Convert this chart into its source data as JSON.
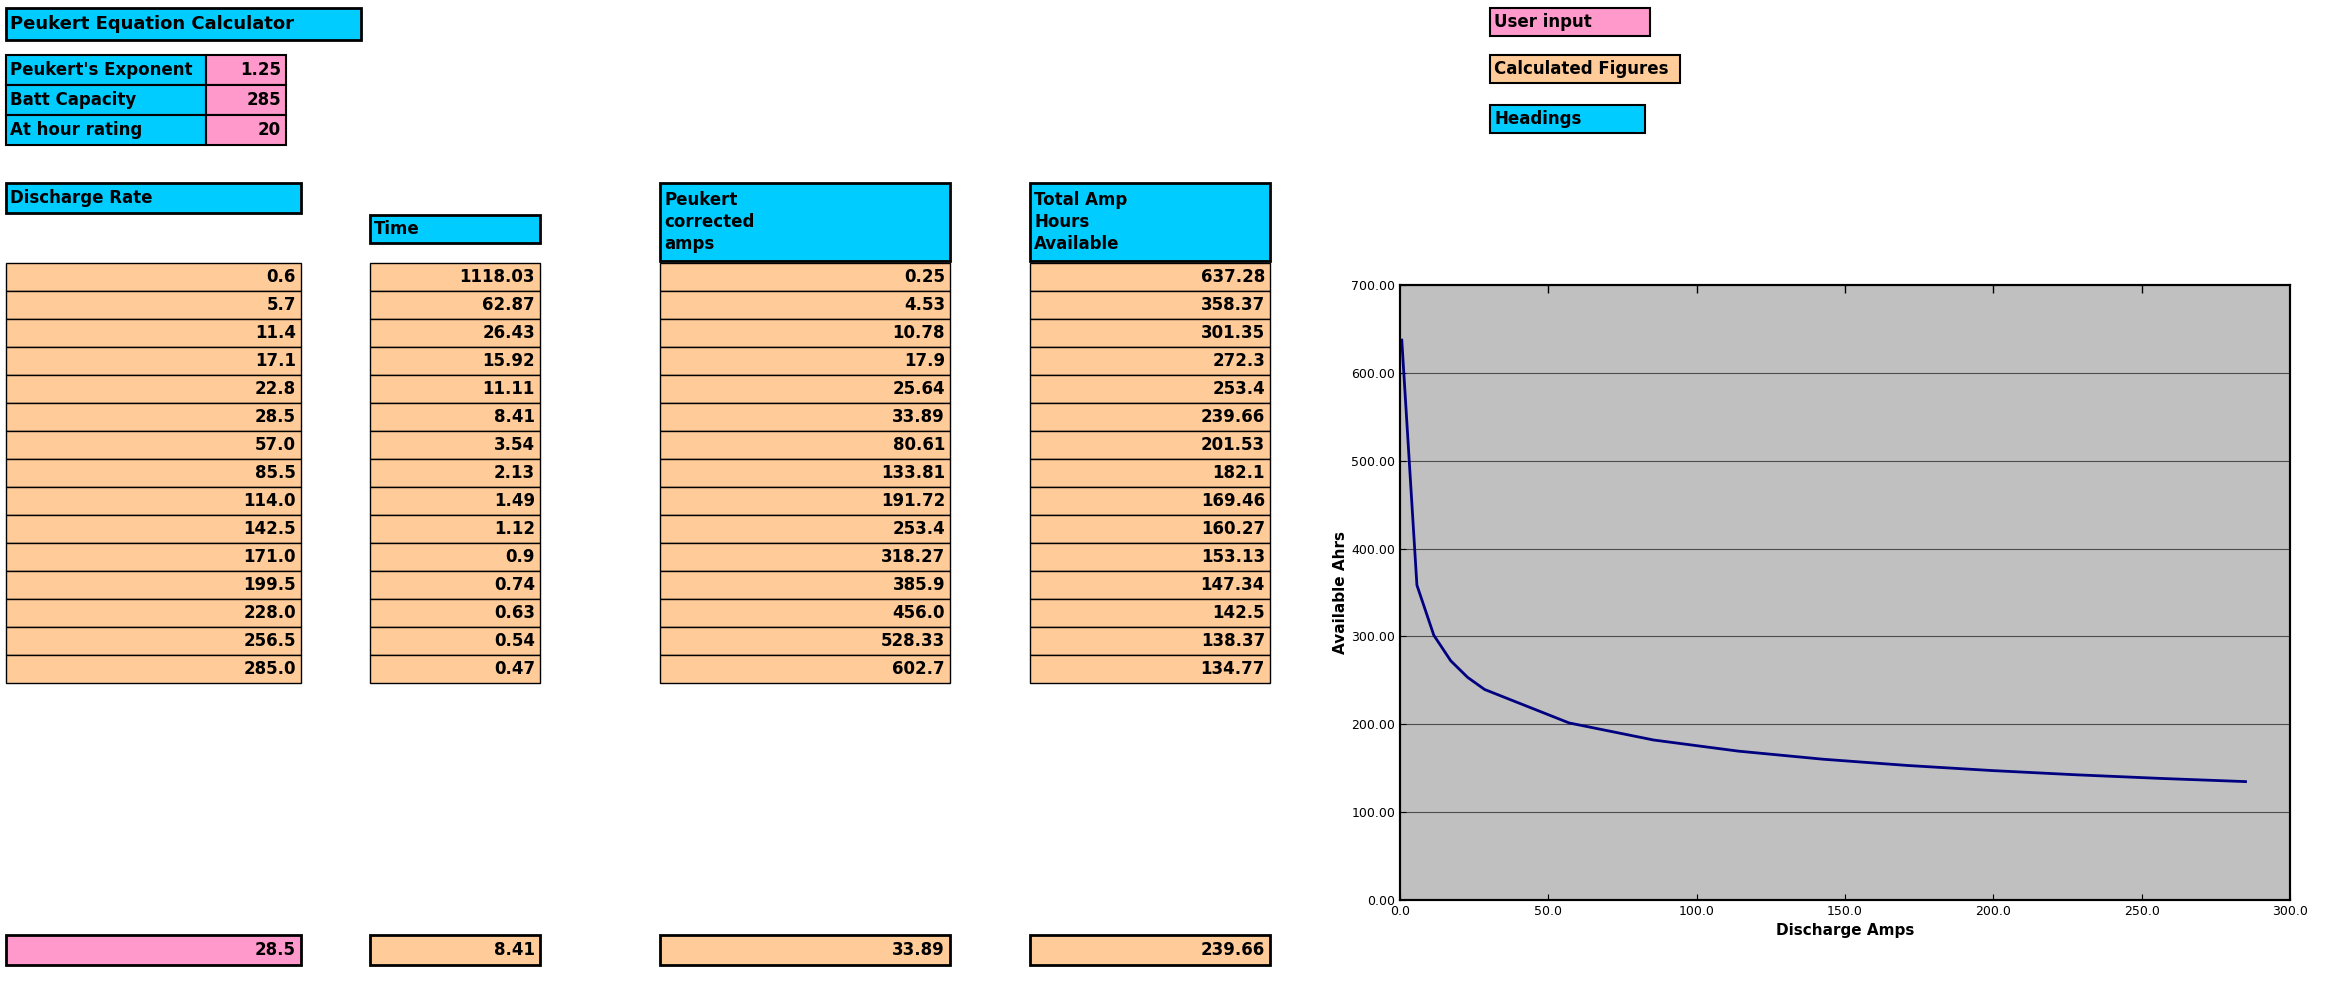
{
  "title": "Peukert Equation Calculator",
  "input_labels": [
    "Peukert's Exponent",
    "Batt Capacity",
    "At hour rating"
  ],
  "input_values": [
    "1.25",
    "285",
    "20"
  ],
  "col_headers": [
    "Discharge Rate",
    "Time",
    "Peukert\ncorrected\namps",
    "Total Amp\nHours\nAvailable"
  ],
  "discharge_rate": [
    0.6,
    5.7,
    11.4,
    17.1,
    22.8,
    28.5,
    57.0,
    85.5,
    114.0,
    142.5,
    171.0,
    199.5,
    228.0,
    256.5,
    285.0
  ],
  "time": [
    1118.03,
    62.87,
    26.43,
    15.92,
    11.11,
    8.41,
    3.54,
    2.13,
    1.49,
    1.12,
    0.9,
    0.74,
    0.63,
    0.54,
    0.47
  ],
  "peukert_amps": [
    0.25,
    4.53,
    10.78,
    17.9,
    25.64,
    33.89,
    80.61,
    133.81,
    191.72,
    253.4,
    318.27,
    385.9,
    456.0,
    528.33,
    602.7
  ],
  "total_amp_hours": [
    637.28,
    358.37,
    301.35,
    272.3,
    253.4,
    239.66,
    201.53,
    182.1,
    169.46,
    160.27,
    153.13,
    147.34,
    142.5,
    138.37,
    134.77
  ],
  "footer_values": [
    "28.5",
    "8.41",
    "33.89",
    "239.66"
  ],
  "legend_items": [
    "User input",
    "Calculated Figures",
    "Headings"
  ],
  "legend_colors": [
    "#FF99CC",
    "#FFCC99",
    "#00CCFF"
  ],
  "cyan_color": "#00CCFF",
  "pink_color": "#FF99CC",
  "orange_color": "#FFCC99",
  "bg_color": "#FFFFFF",
  "chart_bg": "#C0C0C0",
  "line_color": "#000080"
}
